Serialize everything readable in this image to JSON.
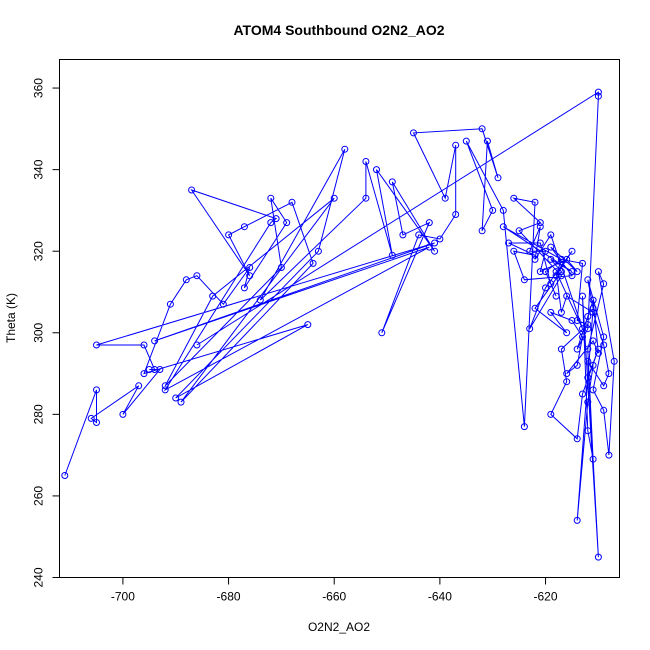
{
  "chart_data": {
    "type": "line",
    "title": "ATOM4 Southbound O2N2_AO2",
    "xlabel": "O2N2_AO2",
    "ylabel": "Theta (K)",
    "xlim": [
      -712,
      -606
    ],
    "ylim": [
      240,
      367
    ],
    "x_ticks": [
      "-700",
      "-680",
      "-660",
      "-640",
      "-620"
    ],
    "y_ticks": [
      "240",
      "260",
      "280",
      "300",
      "320",
      "340",
      "360"
    ],
    "grid": false,
    "legend": "none",
    "series": [
      {
        "color": "#0000ff",
        "markers": "open-circle",
        "points": [
          [
            -711,
            265
          ],
          [
            -705,
            286
          ],
          [
            -705,
            278
          ],
          [
            -706,
            279
          ],
          [
            -697,
            287
          ],
          [
            -700,
            280
          ],
          [
            -693,
            291
          ],
          [
            -695,
            291
          ],
          [
            -694,
            291
          ],
          [
            -696,
            297
          ],
          [
            -705,
            297
          ],
          [
            -641,
            322
          ],
          [
            -694,
            298
          ],
          [
            -642,
            321
          ],
          [
            -692,
            286
          ],
          [
            -672,
            327
          ],
          [
            -671,
            328
          ],
          [
            -687,
            335
          ],
          [
            -676,
            314
          ],
          [
            -680,
            324
          ],
          [
            -677,
            326
          ],
          [
            -668,
            332
          ],
          [
            -664,
            317
          ],
          [
            -689,
            283
          ],
          [
            -660,
            333
          ],
          [
            -683,
            309
          ],
          [
            -692,
            287
          ],
          [
            -670,
            316
          ],
          [
            -672,
            333
          ],
          [
            -669,
            327
          ],
          [
            -677,
            311
          ],
          [
            -676,
            316
          ],
          [
            -681,
            307
          ],
          [
            -686,
            314
          ],
          [
            -688,
            313
          ],
          [
            -691,
            307
          ],
          [
            -696,
            290
          ],
          [
            -665,
            302
          ],
          [
            -690,
            284
          ],
          [
            -663,
            320
          ],
          [
            -658,
            345
          ],
          [
            -674,
            308
          ],
          [
            -654,
            333
          ],
          [
            -654,
            342
          ],
          [
            -649,
            319
          ],
          [
            -652,
            340
          ],
          [
            -641,
            320
          ],
          [
            -649,
            337
          ],
          [
            -647,
            324
          ],
          [
            -642,
            327
          ],
          [
            -651,
            300
          ],
          [
            -644,
            324
          ],
          [
            -640,
            323
          ],
          [
            -637,
            329
          ],
          [
            -637,
            346
          ],
          [
            -639,
            333
          ],
          [
            -645,
            349
          ],
          [
            -632,
            350
          ],
          [
            -629,
            338
          ],
          [
            -631,
            347
          ],
          [
            -632,
            325
          ],
          [
            -630,
            330
          ],
          [
            -635,
            347
          ],
          [
            -628,
            330
          ],
          [
            -624,
            277
          ],
          [
            -622,
            332
          ],
          [
            -626,
            333
          ],
          [
            -621,
            327
          ],
          [
            -625,
            325
          ],
          [
            -617,
            314
          ],
          [
            -623,
            301
          ],
          [
            -620,
            311
          ],
          [
            -615,
            320
          ],
          [
            -618,
            314
          ],
          [
            -617,
            318
          ],
          [
            -613,
            317
          ],
          [
            -614,
            303
          ],
          [
            -612,
            302
          ],
          [
            -617,
            296
          ],
          [
            -616,
            288
          ],
          [
            -619,
            280
          ],
          [
            -614,
            274
          ],
          [
            -613,
            285
          ],
          [
            -610,
            296
          ],
          [
            -612,
            289
          ],
          [
            -611,
            292
          ],
          [
            -612,
            283
          ],
          [
            -614,
            254
          ],
          [
            -611,
            306
          ],
          [
            -612,
            313
          ],
          [
            -609,
            299
          ],
          [
            -611,
            286
          ],
          [
            -609,
            281
          ],
          [
            -608,
            270
          ],
          [
            -607,
            293
          ],
          [
            -610,
            315
          ],
          [
            -609,
            312
          ],
          [
            -612,
            296
          ],
          [
            -611,
            269
          ],
          [
            -612,
            276
          ],
          [
            -613,
            309
          ],
          [
            -610,
            245
          ],
          [
            -612,
            293
          ],
          [
            -609,
            287
          ],
          [
            -608,
            290
          ],
          [
            -609,
            297
          ],
          [
            -611,
            305
          ],
          [
            -616,
            309
          ],
          [
            -617,
            305
          ],
          [
            -618,
            315
          ],
          [
            -613,
            301
          ],
          [
            -619,
            324
          ],
          [
            -622,
            318
          ],
          [
            -621,
            326
          ],
          [
            -623,
            320
          ],
          [
            -620,
            320
          ],
          [
            -621,
            315
          ],
          [
            -616,
            318
          ],
          [
            -614,
            315
          ],
          [
            -619,
            321
          ],
          [
            -615,
            314
          ],
          [
            -624,
            313
          ],
          [
            -626,
            320
          ],
          [
            -622,
            319
          ],
          [
            -627,
            322
          ],
          [
            -621,
            322
          ],
          [
            -619,
            312
          ],
          [
            -618,
            309
          ],
          [
            -620,
            315
          ],
          [
            -617,
            318
          ],
          [
            -628,
            326
          ],
          [
            -615,
            315
          ],
          [
            -619,
            318
          ],
          [
            -617,
            315
          ],
          [
            -622,
            306
          ],
          [
            -616,
            300
          ],
          [
            -619,
            305
          ],
          [
            -615,
            303
          ],
          [
            -613,
            299
          ],
          [
            -614,
            292
          ],
          [
            -616,
            290
          ],
          [
            -611,
            298
          ],
          [
            -610,
            295
          ],
          [
            -611,
            308
          ],
          [
            -612,
            304
          ],
          [
            -614,
            296
          ],
          [
            -612,
            301
          ],
          [
            -610,
            358
          ],
          [
            -610,
            359
          ],
          [
            -686,
            297
          ]
        ]
      }
    ]
  }
}
